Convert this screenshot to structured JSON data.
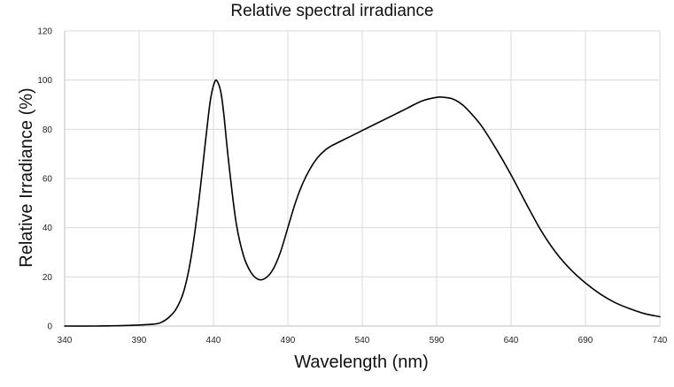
{
  "chart_data": {
    "type": "line",
    "title": "Relative spectral irradiance",
    "xlabel": "Wavelength (nm)",
    "ylabel": "Relative Irradiance (%)",
    "xlim": [
      340,
      740
    ],
    "ylim": [
      0,
      120
    ],
    "x_ticks": [
      "340",
      "390",
      "440",
      "490",
      "540",
      "590",
      "640",
      "690",
      "740"
    ],
    "y_ticks": [
      "0",
      "20",
      "40",
      "60",
      "80",
      "100",
      "120"
    ],
    "grid": true,
    "legend": "none",
    "colors": {
      "line": "#000000",
      "grid": "#d9d9d9",
      "axis": "#bfbfbf"
    },
    "series": [
      {
        "x": [
          340,
          360,
          380,
          400,
          405,
          410,
          415,
          420,
          425,
          430,
          435,
          438,
          441,
          443,
          445,
          447,
          450,
          455,
          460,
          465,
          470,
          475,
          480,
          485,
          490,
          495,
          500,
          505,
          510,
          515,
          520,
          525,
          530,
          540,
          550,
          560,
          570,
          580,
          590,
          595,
          600,
          605,
          610,
          620,
          630,
          640,
          650,
          660,
          670,
          680,
          690,
          700,
          710,
          720,
          730,
          740
        ],
        "y": [
          0,
          0,
          0.2,
          0.8,
          1.5,
          3.5,
          7,
          14,
          28,
          50,
          77,
          92,
          99.5,
          99,
          95,
          86,
          68,
          43,
          29,
          22,
          19,
          19.5,
          23,
          30,
          40,
          50,
          58,
          64,
          68.5,
          71.5,
          73.5,
          75,
          76.5,
          79.5,
          82.5,
          85.5,
          88.5,
          91.5,
          93,
          93,
          92.5,
          91,
          88.5,
          81.5,
          72,
          61.5,
          50,
          39,
          30,
          23,
          17.5,
          13,
          9.5,
          7,
          5,
          3.8
        ]
      }
    ]
  }
}
